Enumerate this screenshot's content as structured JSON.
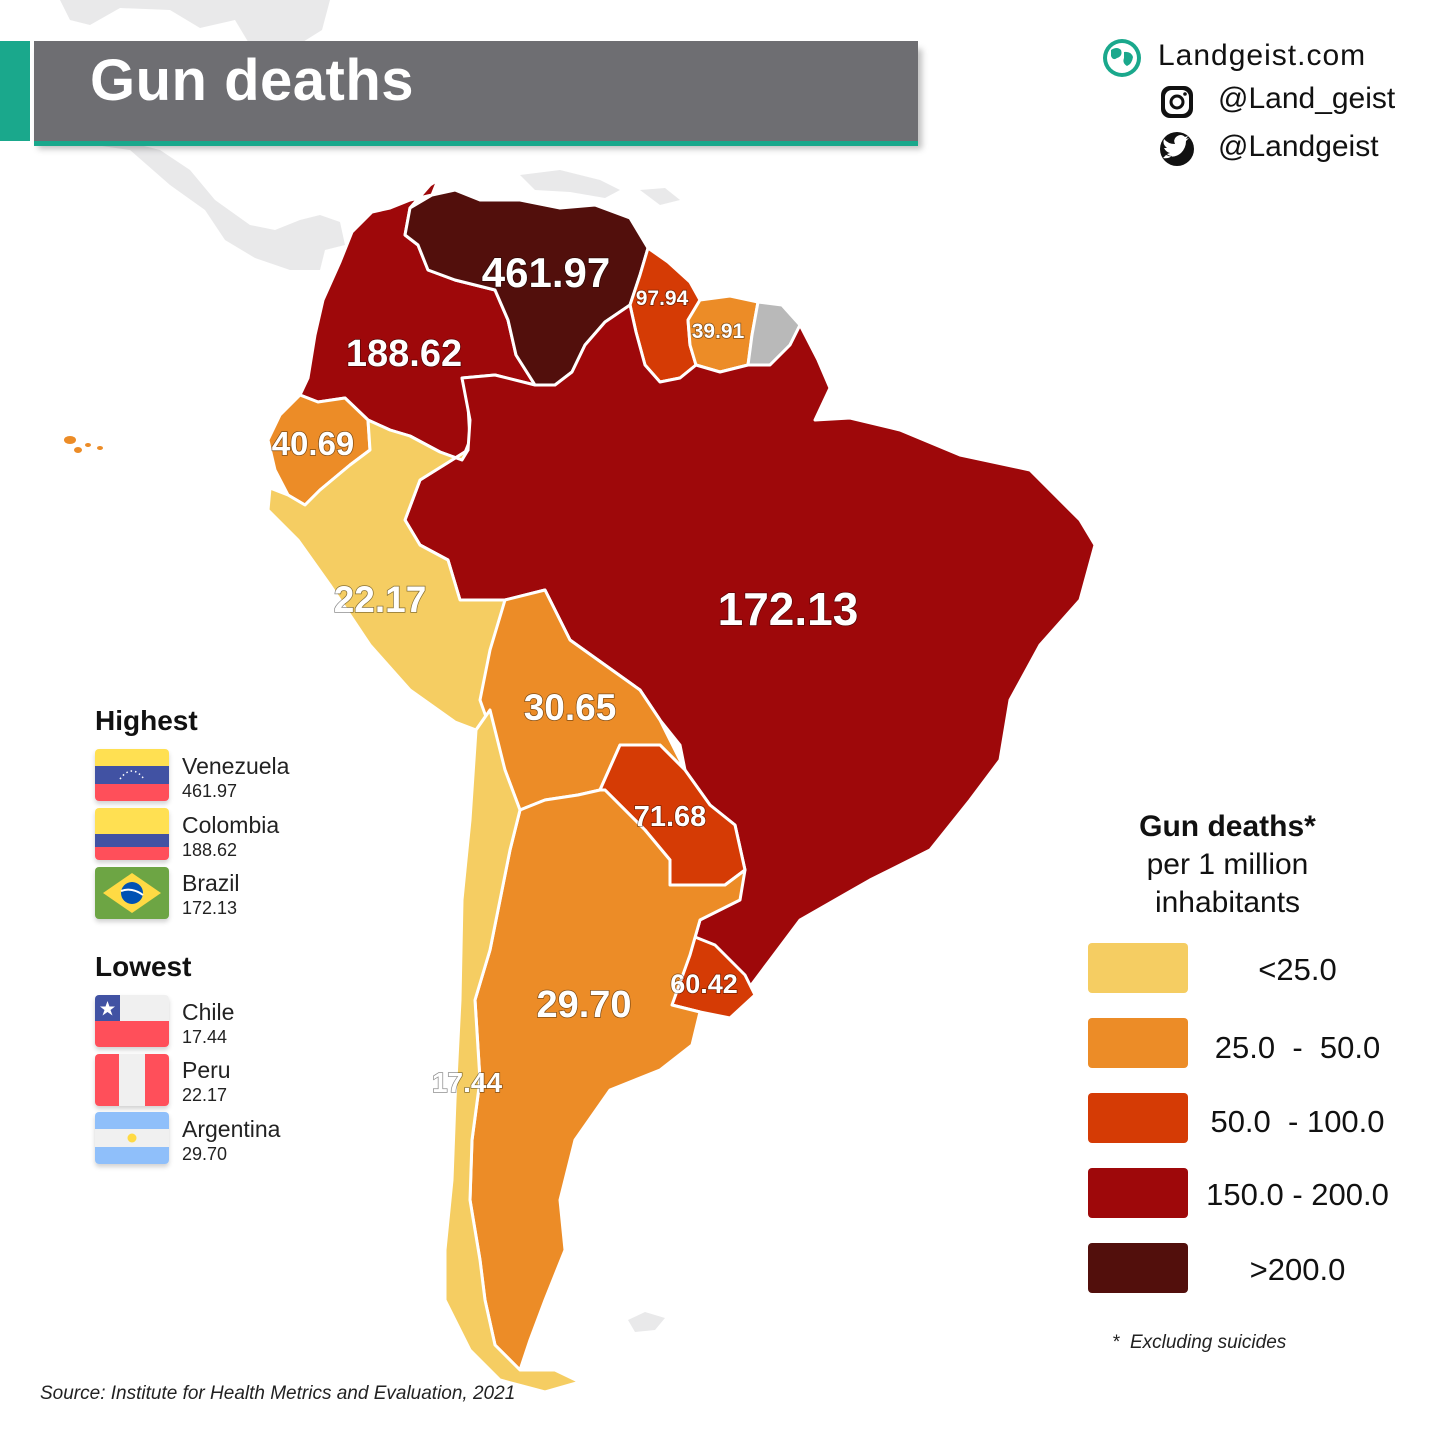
{
  "title": "Gun deaths",
  "brand": {
    "site": "Landgeist.com",
    "instagram": "@Land_geist",
    "twitter": "@Landgeist",
    "icons": [
      "globe-icon",
      "instagram-icon",
      "twitter-icon"
    ]
  },
  "map_values": {
    "venezuela": "461.97",
    "colombia": "188.62",
    "guyana": "97.94",
    "suriname": "39.91",
    "ecuador": "40.69",
    "peru": "22.17",
    "brazil": "172.13",
    "bolivia": "30.65",
    "paraguay": "71.68",
    "uruguay": "60.42",
    "argentina": "29.70",
    "chile": "17.44"
  },
  "highest": {
    "heading": "Highest",
    "items": [
      {
        "country": "Venezuela",
        "value": "461.97"
      },
      {
        "country": "Colombia",
        "value": "188.62"
      },
      {
        "country": "Brazil",
        "value": "172.13"
      }
    ]
  },
  "lowest": {
    "heading": "Lowest",
    "items": [
      {
        "country": "Chile",
        "value": "17.44"
      },
      {
        "country": "Peru",
        "value": "22.17"
      },
      {
        "country": "Argentina",
        "value": "29.70"
      }
    ]
  },
  "scale": {
    "title_line1": "Gun deaths*",
    "title_line2": "per 1 million",
    "title_line3": "inhabitants",
    "bins": [
      {
        "label": "<25.0",
        "color": "#f5cd62"
      },
      {
        "label": "25.0  -  50.0",
        "color": "#ec8c27"
      },
      {
        "label": "50.0  - 100.0",
        "color": "#d53b05"
      },
      {
        "label": "150.0 - 200.0",
        "color": "#9e080a"
      },
      {
        "label": ">200.0",
        "color": "#520f0c"
      }
    ],
    "no_data_color": "#b9b9b9"
  },
  "footnote": "*  Excluding suicides",
  "source": "Source: Institute for Health Metrics and Evaluation, 2021"
}
